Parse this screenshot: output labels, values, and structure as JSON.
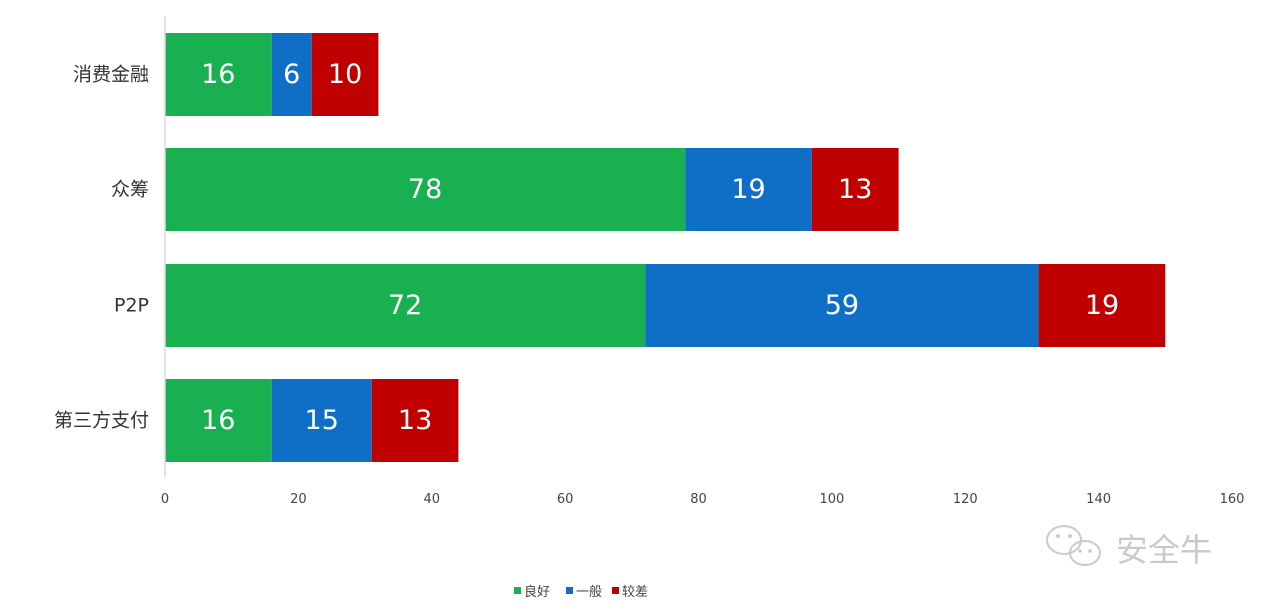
{
  "chart_data": {
    "type": "bar",
    "orientation": "horizontal",
    "stacked": true,
    "categories": [
      "消费金融",
      "众筹",
      "P2P",
      "第三方支付"
    ],
    "series": [
      {
        "name": "良好",
        "color": "#18b050",
        "values": [
          16,
          78,
          72,
          16
        ]
      },
      {
        "name": "一般",
        "color": "#0f6fc6",
        "values": [
          6,
          19,
          59,
          15
        ]
      },
      {
        "name": "较差",
        "color": "#c00000",
        "values": [
          10,
          13,
          19,
          13
        ]
      }
    ],
    "xlim": [
      0,
      160
    ],
    "x_ticks": [
      0,
      20,
      40,
      60,
      80,
      100,
      120,
      140,
      160
    ],
    "grid": false,
    "legend_position": "bottom",
    "data_labels": true
  },
  "watermark": {
    "text": "安全牛",
    "icon": "wechat-icon"
  }
}
